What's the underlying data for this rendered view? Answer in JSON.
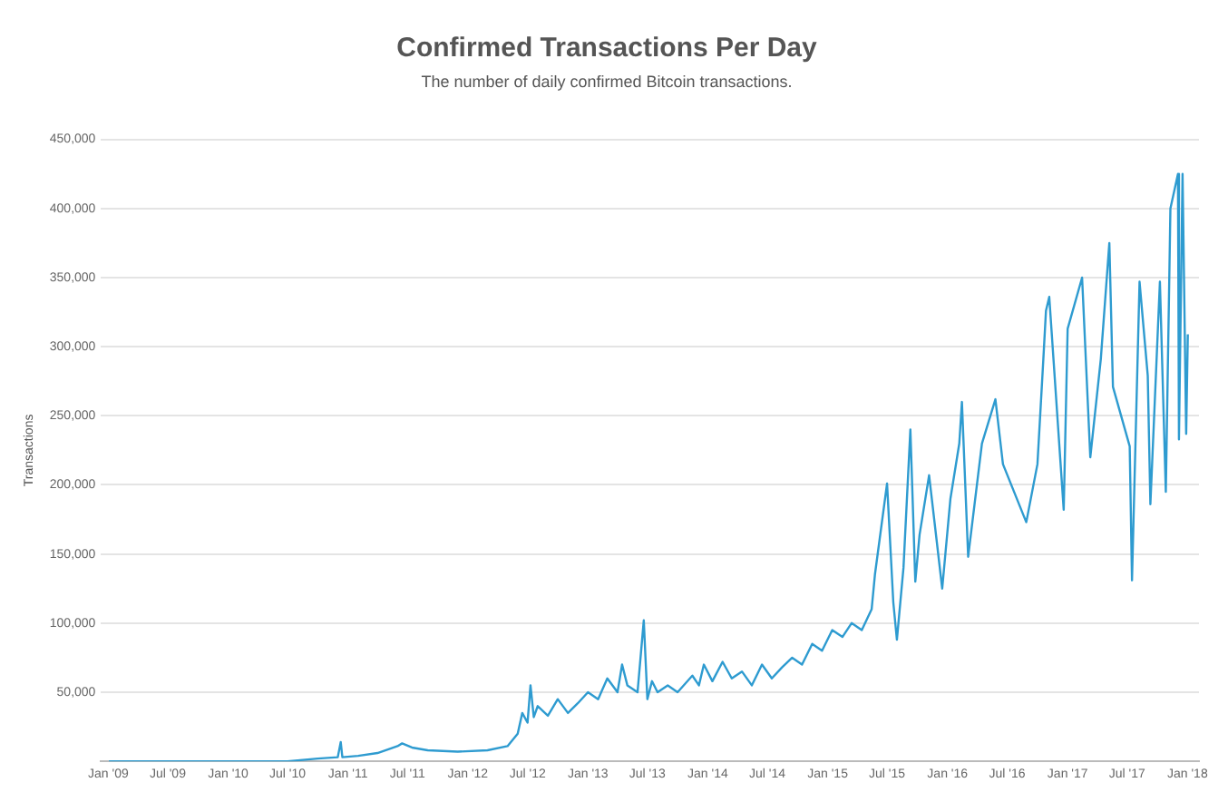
{
  "chart_data": {
    "type": "line",
    "title": "Confirmed Transactions Per Day",
    "subtitle": "The number of daily confirmed Bitcoin transactions.",
    "ylabel": "Transactions",
    "xlim": [
      "2008-12-10",
      "2018-02-05"
    ],
    "xticks": [
      {
        "value": "2009-01-01",
        "label": "Jan '09"
      },
      {
        "value": "2009-07-01",
        "label": "Jul '09"
      },
      {
        "value": "2010-01-01",
        "label": "Jan '10"
      },
      {
        "value": "2010-07-01",
        "label": "Jul '10"
      },
      {
        "value": "2011-01-01",
        "label": "Jan '11"
      },
      {
        "value": "2011-07-01",
        "label": "Jul '11"
      },
      {
        "value": "2012-01-01",
        "label": "Jan '12"
      },
      {
        "value": "2012-07-01",
        "label": "Jul '12"
      },
      {
        "value": "2013-01-01",
        "label": "Jan '13"
      },
      {
        "value": "2013-07-01",
        "label": "Jul '13"
      },
      {
        "value": "2014-01-01",
        "label": "Jan '14"
      },
      {
        "value": "2014-07-01",
        "label": "Jul '14"
      },
      {
        "value": "2015-01-01",
        "label": "Jan '15"
      },
      {
        "value": "2015-07-01",
        "label": "Jul '15"
      },
      {
        "value": "2016-01-01",
        "label": "Jan '16"
      },
      {
        "value": "2016-07-01",
        "label": "Jul '16"
      },
      {
        "value": "2017-01-01",
        "label": "Jan '17"
      },
      {
        "value": "2017-07-01",
        "label": "Jul '17"
      },
      {
        "value": "2018-01-01",
        "label": "Jan '18"
      }
    ],
    "ylim": [
      0,
      450000
    ],
    "yticks": [
      {
        "value": 0,
        "label": null
      },
      {
        "value": 50000,
        "label": "50,000"
      },
      {
        "value": 100000,
        "label": "100,000"
      },
      {
        "value": 150000,
        "label": "150,000"
      },
      {
        "value": 200000,
        "label": "200,000"
      },
      {
        "value": 250000,
        "label": "250,000"
      },
      {
        "value": 300000,
        "label": "300,000"
      },
      {
        "value": 350000,
        "label": "350,000"
      },
      {
        "value": 400000,
        "label": "400,000"
      },
      {
        "value": 450000,
        "label": "450,000"
      }
    ],
    "grid": "y",
    "legend": false,
    "marker": "none",
    "line_style": "solid",
    "x": [
      "2009-01-03",
      "2010-07-01",
      "2010-10-01",
      "2010-12-01",
      "2010-12-10",
      "2010-12-15",
      "2011-02-01",
      "2011-04-01",
      "2011-06-01",
      "2011-06-15",
      "2011-07-15",
      "2011-09-01",
      "2011-12-01",
      "2012-03-01",
      "2012-05-01",
      "2012-06-01",
      "2012-06-15",
      "2012-07-01",
      "2012-07-10",
      "2012-07-20",
      "2012-08-01",
      "2012-09-01",
      "2012-10-01",
      "2012-11-01",
      "2012-12-01",
      "2013-01-01",
      "2013-02-01",
      "2013-03-01",
      "2013-04-01",
      "2013-04-15",
      "2013-05-01",
      "2013-06-01",
      "2013-06-20",
      "2013-07-01",
      "2013-07-15",
      "2013-08-01",
      "2013-09-01",
      "2013-10-01",
      "2013-11-15",
      "2013-12-05",
      "2013-12-20",
      "2014-01-15",
      "2014-02-15",
      "2014-03-15",
      "2014-04-15",
      "2014-05-15",
      "2014-06-15",
      "2014-07-15",
      "2014-08-15",
      "2014-09-15",
      "2014-10-15",
      "2014-11-15",
      "2014-12-15",
      "2015-01-15",
      "2015-02-15",
      "2015-03-15",
      "2015-04-15",
      "2015-05-15",
      "2015-05-25",
      "2015-07-01",
      "2015-07-20",
      "2015-07-31",
      "2015-08-20",
      "2015-09-10",
      "2015-09-25",
      "2015-10-08",
      "2015-11-06",
      "2015-12-16",
      "2016-01-10",
      "2016-02-06",
      "2016-02-14",
      "2016-03-04",
      "2016-04-15",
      "2016-05-26",
      "2016-06-18",
      "2016-08-28",
      "2016-10-01",
      "2016-10-19",
      "2016-10-27",
      "2016-11-06",
      "2016-12-20",
      "2017-01-01",
      "2017-02-14",
      "2017-03-11",
      "2017-04-12",
      "2017-05-08",
      "2017-05-19",
      "2017-07-09",
      "2017-07-16",
      "2017-08-08",
      "2017-09-02",
      "2017-09-10",
      "2017-10-09",
      "2017-10-27",
      "2017-11-10",
      "2017-12-03",
      "2017-12-06",
      "2017-12-17",
      "2017-12-28",
      "2018-01-02"
    ],
    "values": [
      0,
      0,
      2000,
      3000,
      14000,
      3000,
      4000,
      6000,
      11000,
      13000,
      10000,
      8000,
      7000,
      8000,
      11000,
      20000,
      35000,
      28000,
      55000,
      32000,
      40000,
      33000,
      45000,
      35000,
      42000,
      50000,
      45000,
      60000,
      50000,
      70000,
      55000,
      50000,
      102000,
      45000,
      58000,
      50000,
      55000,
      50000,
      62000,
      55000,
      70000,
      58000,
      72000,
      60000,
      65000,
      55000,
      70000,
      60000,
      68000,
      75000,
      70000,
      85000,
      80000,
      95000,
      90000,
      100000,
      95000,
      110000,
      135000,
      201000,
      115000,
      88000,
      140000,
      240000,
      130000,
      164000,
      207000,
      125000,
      190000,
      230000,
      260000,
      148000,
      230000,
      262000,
      215000,
      173000,
      215000,
      291000,
      326000,
      336000,
      182000,
      313000,
      350000,
      220000,
      291000,
      375000,
      271000,
      228000,
      131000,
      347000,
      279000,
      186000,
      347000,
      195000,
      400000,
      425000,
      233000,
      425000,
      237000,
      309000
    ],
    "color": "#2e9bd0"
  }
}
